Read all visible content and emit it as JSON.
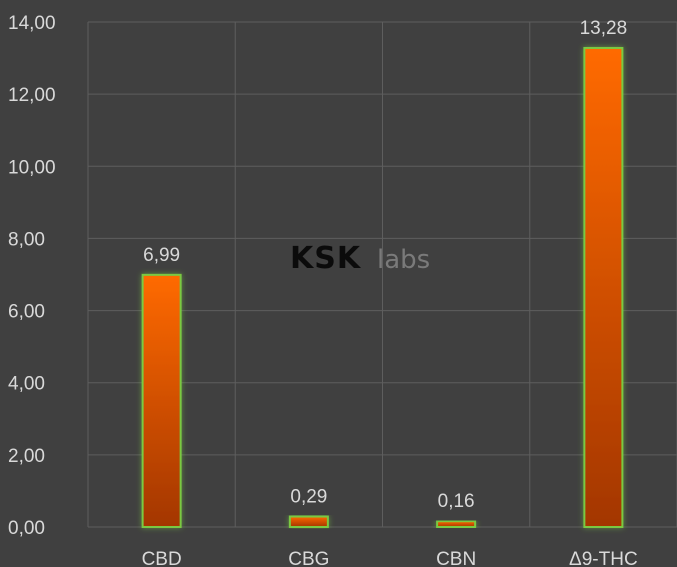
{
  "chart_data": {
    "type": "bar",
    "categories": [
      "CBD",
      "CBG",
      "CBN",
      "Δ9-THC"
    ],
    "series": [
      {
        "values": [
          6.99,
          0.29,
          0.16,
          13.28
        ]
      }
    ],
    "data_labels": [
      "6,99",
      "0,29",
      "0,16",
      "13,28"
    ],
    "ylim": [
      0,
      14
    ],
    "y_ticks": [
      "0,00",
      "2,00",
      "4,00",
      "6,00",
      "8,00",
      "10,00",
      "12,00",
      "14,00"
    ],
    "grid": true,
    "legend": "none",
    "colors": {
      "bar_top": "#ff6a00",
      "bar_bottom": "#a33600",
      "bar_border": "#7ac943",
      "background": "#404040",
      "gridline": "#5e5e5e",
      "text": "#d9d9d9"
    }
  },
  "watermark": {
    "brand": "KSK",
    "suffix": "labs"
  }
}
